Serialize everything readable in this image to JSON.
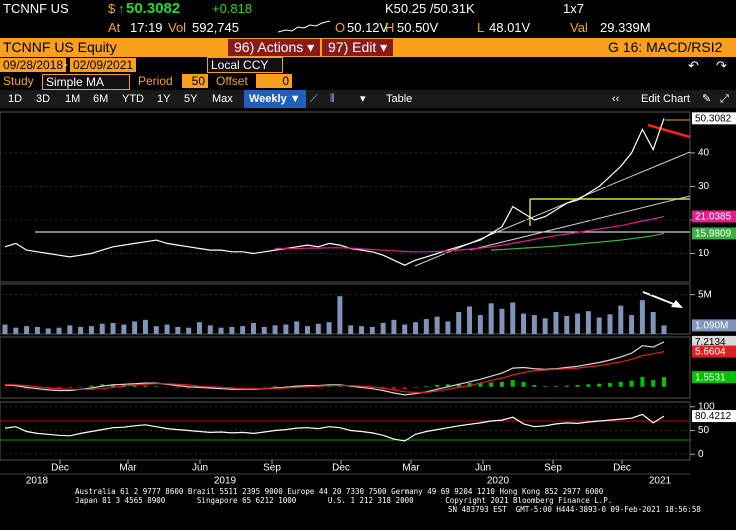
{
  "header": {
    "ticker": "TCNNF US",
    "currency": "$",
    "last": "50.3082",
    "change": "+0.818",
    "bid_ask": "K50.25 /50.31K",
    "size": "1x7",
    "time": {
      "label": "At",
      "value": "17:19"
    },
    "volume": {
      "label": "Vol",
      "value": "592,745"
    },
    "open": {
      "label": "O",
      "value": "50.12V"
    },
    "high": {
      "label": "H",
      "value": "50.50V"
    },
    "low": {
      "label": "L",
      "value": "48.01V"
    },
    "traded_value": {
      "label": "Val",
      "value": "29.339M"
    }
  },
  "toolbar": {
    "security": "TCNNF US Equity",
    "actions": "96) Actions ▾",
    "edit": "97) Edit ▾",
    "page": "G 16: MACD/RSI2",
    "start_date": "09/28/2018",
    "date_sep": "-",
    "end_date": "02/09/2021",
    "currency": "Local CCY",
    "study_label": "Study",
    "study": "Simple MA",
    "period_label": "Period",
    "period": "50",
    "offset_label": "Offset",
    "offset": "0",
    "ranges": [
      "1D",
      "3D",
      "1M",
      "6M",
      "YTD",
      "1Y",
      "5Y",
      "Max"
    ],
    "frequency": "Weekly ▼",
    "table": "Table",
    "edit_chart": "Edit Chart"
  },
  "x_axis": {
    "months": [
      "Dec",
      "Mar",
      "Jun",
      "Sep",
      "Dec",
      "Mar",
      "Jun",
      "Sep",
      "Dec"
    ],
    "years": [
      "2018",
      "2019",
      "2020",
      "2021"
    ]
  },
  "chart_data": [
    {
      "type": "line",
      "ylim": [
        1.5,
        52.2
      ],
      "yticks": [
        10,
        20,
        30,
        40
      ],
      "series": [
        {
          "color": "#ffffff",
          "values": [
            12,
            13,
            11,
            10.5,
            10,
            9.5,
            9,
            9.5,
            10,
            11,
            12,
            12.5,
            13,
            13.5,
            14,
            13,
            12.5,
            12,
            11.5,
            11,
            11,
            10.5,
            10.5,
            10,
            10.5,
            11,
            11.5,
            12,
            12.5,
            12,
            13,
            12.5,
            11.5,
            11,
            10.5,
            9.5,
            8,
            6.5,
            8,
            9,
            10,
            11,
            12,
            13,
            14,
            16,
            18,
            24,
            22,
            20,
            21,
            23,
            25,
            26,
            28,
            30,
            33,
            36,
            40,
            47,
            41,
            50.3082
          ]
        },
        {
          "color": "#e0208a",
          "values": [
            null,
            null,
            null,
            null,
            null,
            null,
            null,
            null,
            null,
            null,
            null,
            null,
            null,
            null,
            null,
            null,
            null,
            null,
            null,
            null,
            null,
            null,
            null,
            null,
            null,
            11.5,
            11.5,
            11.5,
            11.6,
            11.6,
            11.7,
            11.7,
            11.6,
            11.4,
            11.2,
            11,
            10.8,
            10.6,
            10.5,
            10.5,
            10.6,
            10.8,
            11,
            11.3,
            11.6,
            12,
            12.5,
            13,
            13.6,
            14.2,
            14.8,
            15.3,
            15.8,
            16.3,
            16.8,
            17.3,
            17.8,
            18.3,
            19,
            19.7,
            20.3,
            21.0385
          ]
        },
        {
          "color": "#3cb043",
          "values": [
            null,
            null,
            null,
            null,
            null,
            null,
            null,
            null,
            null,
            null,
            null,
            null,
            null,
            null,
            null,
            null,
            null,
            null,
            null,
            null,
            null,
            null,
            null,
            null,
            null,
            null,
            null,
            null,
            null,
            null,
            null,
            null,
            null,
            null,
            null,
            null,
            null,
            null,
            null,
            null,
            null,
            null,
            null,
            null,
            null,
            11,
            11.2,
            11.4,
            11.6,
            11.8,
            12,
            12.2,
            12.5,
            12.8,
            13.1,
            13.4,
            13.7,
            14,
            14.4,
            14.8,
            15.3,
            15.9809
          ]
        }
      ]
    },
    {
      "type": "bar",
      "ylim": [
        0,
        6.35
      ],
      "yticks": [
        {
          "value": 5,
          "label": "5M"
        }
      ],
      "color": "#7f94b8",
      "last_value_label": "1.090M",
      "values": [
        1.2,
        0.8,
        1.0,
        0.9,
        0.7,
        0.8,
        1.1,
        0.9,
        1.0,
        1.3,
        1.4,
        1.2,
        1.6,
        1.8,
        1.0,
        1.2,
        0.9,
        0.8,
        1.5,
        1.1,
        0.8,
        0.9,
        1.0,
        1.4,
        0.9,
        1.1,
        1.2,
        1.6,
        1.0,
        1.3,
        1.5,
        4.8,
        1.1,
        1.0,
        0.9,
        1.4,
        1.8,
        1.2,
        1.5,
        1.9,
        2.2,
        1.6,
        2.8,
        3.5,
        2.4,
        3.9,
        3.2,
        4.0,
        2.6,
        2.4,
        2.0,
        2.8,
        2.3,
        2.6,
        2.9,
        2.1,
        2.5,
        3.6,
        2.4,
        4.3,
        2.8,
        1.09
      ]
    },
    {
      "type": "line",
      "ylim": [
        -1.8,
        8.0
      ],
      "histogram": {
        "positive_color": "#00c000",
        "negative_color": "#c00000",
        "values": [
          -0.1,
          -0.1,
          -0.3,
          -0.3,
          -0.3,
          -0.3,
          -0.2,
          0.0,
          0.2,
          0.4,
          0.4,
          0.3,
          0.2,
          0.2,
          0.1,
          -0.1,
          -0.2,
          -0.3,
          -0.2,
          -0.2,
          -0.2,
          -0.2,
          -0.1,
          -0.1,
          0.0,
          0.1,
          0.1,
          0.2,
          0.2,
          0.1,
          0.1,
          0.1,
          -0.1,
          -0.2,
          -0.3,
          -0.4,
          -0.5,
          -0.5,
          -0.2,
          0.1,
          0.3,
          0.4,
          0.5,
          0.6,
          0.6,
          0.7,
          0.8,
          1.1,
          0.8,
          0.3,
          0.1,
          0.1,
          0.2,
          0.3,
          0.4,
          0.5,
          0.6,
          0.8,
          1.0,
          1.6,
          1.1,
          1.5531
        ]
      },
      "series": [
        {
          "color": "#d8d8d8",
          "values": [
            0.3,
            0.2,
            -0.1,
            -0.3,
            -0.5,
            -0.6,
            -0.6,
            -0.4,
            -0.2,
            0.1,
            0.3,
            0.4,
            0.5,
            0.6,
            0.6,
            0.4,
            0.2,
            0.0,
            -0.1,
            -0.2,
            -0.3,
            -0.4,
            -0.4,
            -0.4,
            -0.3,
            -0.2,
            -0.1,
            0.1,
            0.2,
            0.2,
            0.3,
            0.3,
            0.1,
            -0.1,
            -0.3,
            -0.6,
            -1.0,
            -1.3,
            -1.1,
            -0.8,
            -0.4,
            0.0,
            0.4,
            0.8,
            1.2,
            1.7,
            2.2,
            3.0,
            3.1,
            2.9,
            2.8,
            2.9,
            3.1,
            3.3,
            3.6,
            3.9,
            4.3,
            4.8,
            5.4,
            6.6,
            6.4,
            7.2134
          ]
        },
        {
          "color": "#e02020",
          "values": [
            0.4,
            0.3,
            0.2,
            0.0,
            -0.2,
            -0.3,
            -0.4,
            -0.4,
            -0.4,
            -0.3,
            -0.1,
            0.1,
            0.3,
            0.4,
            0.5,
            0.5,
            0.4,
            0.3,
            0.1,
            0.0,
            -0.1,
            -0.2,
            -0.3,
            -0.3,
            -0.3,
            -0.3,
            -0.2,
            -0.1,
            0.0,
            0.1,
            0.2,
            0.2,
            0.2,
            0.1,
            0.0,
            -0.2,
            -0.5,
            -0.8,
            -0.9,
            -0.9,
            -0.7,
            -0.4,
            -0.1,
            0.2,
            0.6,
            1.0,
            1.4,
            1.9,
            2.3,
            2.6,
            2.7,
            2.8,
            2.9,
            3.0,
            3.2,
            3.4,
            3.7,
            4.0,
            4.4,
            5.0,
            5.3,
            5.6604
          ]
        }
      ]
    },
    {
      "type": "line",
      "ylim": [
        -12,
        110
      ],
      "yticks": [
        0,
        50,
        100
      ],
      "levels": [
        {
          "value": 70,
          "color": "#c00000"
        },
        {
          "value": 30,
          "color": "#00a000"
        }
      ],
      "series": [
        {
          "color": "#ffffff",
          "values": [
            55,
            58,
            48,
            44,
            42,
            40,
            39,
            44,
            48,
            52,
            56,
            57,
            60,
            62,
            58,
            54,
            52,
            50,
            48,
            46,
            47,
            45,
            46,
            44,
            47,
            50,
            52,
            55,
            56,
            54,
            58,
            56,
            50,
            48,
            45,
            40,
            32,
            28,
            42,
            48,
            52,
            56,
            60,
            63,
            66,
            70,
            72,
            78,
            64,
            58,
            60,
            64,
            66,
            65,
            68,
            70,
            72,
            74,
            76,
            84,
            66,
            80.4212
          ]
        }
      ]
    }
  ],
  "footer": [
    "Australia 61 2 9777 8600 Brazil 5511 2395 9000 Europe 44 20 7330 7500 Germany 49 69 9204 1210 Hong Kong 852 2977 6000",
    "Japan 81 3 4565 8900       Singapore 65 6212 1000       U.S. 1 212 318 2000       Copyright 2021 Bloomberg Finance L.P.",
    "SN 483793 EST  GMT-5:00 H444-3893-0 09-Feb-2021 18:56:58"
  ]
}
